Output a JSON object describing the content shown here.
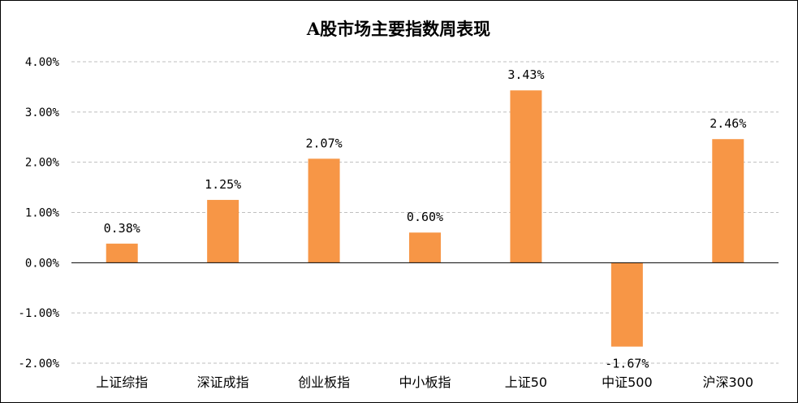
{
  "chart_data": {
    "type": "bar",
    "title": "A股市场主要指数周表现",
    "categories": [
      "上证综指",
      "深证成指",
      "创业板指",
      "中小板指",
      "上证50",
      "中证500",
      "沪深300"
    ],
    "series": [
      {
        "values": [
          0.38,
          1.25,
          2.07,
          0.6,
          3.43,
          -1.67,
          2.46
        ],
        "labels": [
          "0.38%",
          "1.25%",
          "2.07%",
          "0.60%",
          "3.43%",
          "-1.67%",
          "2.46%"
        ]
      }
    ],
    "y_ticks": [
      4,
      3,
      2,
      1,
      0,
      -1,
      -2
    ],
    "y_tick_labels": [
      "4.00%",
      "3.00%",
      "2.00%",
      "1.00%",
      "0.00%",
      "-1.00%",
      "-2.00%"
    ],
    "ylim": [
      -2,
      4
    ],
    "grid": true,
    "legend": "none",
    "bar_color": "#F79646"
  }
}
